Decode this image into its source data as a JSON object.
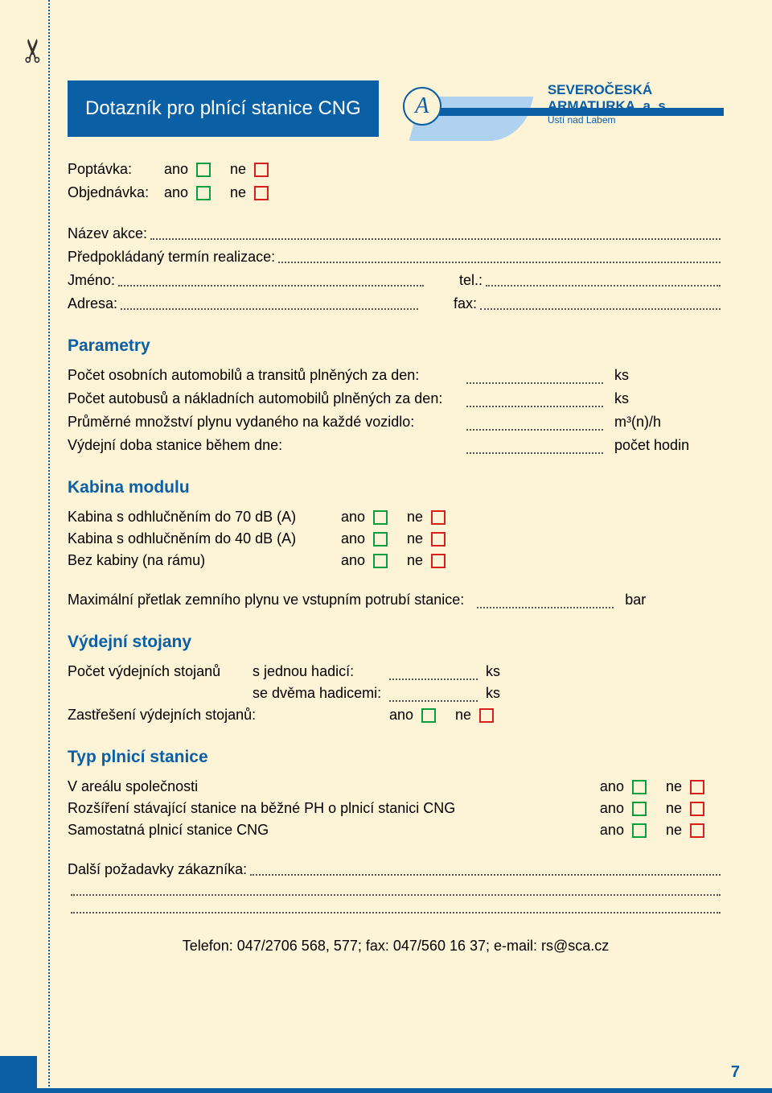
{
  "title": "Dotazník pro plnící stanice CNG",
  "company": {
    "name": "SEVEROČESKÁ ARMATURKA, a. s.",
    "city": "Ústí nad Labem",
    "logo_letter": "A"
  },
  "colors": {
    "brand": "#0a5fa5",
    "background": "#fdf3d6",
    "chk_yes": "#0b9e3f",
    "chk_no": "#d91e1e",
    "wave_light": "#aed2f0"
  },
  "labels": {
    "ano": "ano",
    "ne": "ne",
    "poptavka": "Poptávka:",
    "objednavka": "Objednávka:",
    "nazev_akce": "Název akce:",
    "termin": "Předpokládaný termín realizace:",
    "jmeno": "Jméno:",
    "adresa": "Adresa:",
    "tel": "tel.:",
    "fax": "fax:"
  },
  "parametry": {
    "heading": "Parametry",
    "rows": [
      {
        "label": "Počet osobních automobilů a transitů plněných za den:",
        "unit": "ks"
      },
      {
        "label": "Počet autobusů a nákladních automobilů plněných za den:",
        "unit": "ks"
      },
      {
        "label": "Průměrné množství plynu vydaného na každé vozidlo:",
        "unit": "m³(n)/h"
      },
      {
        "label": "Výdejní doba stanice během dne:",
        "unit": "počet hodin"
      }
    ]
  },
  "kabina": {
    "heading": "Kabina modulu",
    "rows": [
      "Kabina s odhlučněním do 70 dB (A)",
      "Kabina s odhlučněním do 40 dB (A)",
      "Bez kabiny (na rámu)"
    ],
    "max_pretlak": "Maximální přetlak zemního plynu ve vstupním potrubí stanice:",
    "max_unit": "bar"
  },
  "stojany": {
    "heading": "Výdejní stojany",
    "pocet": "Počet výdejních stojanů",
    "jedna": "s jednou hadicí:",
    "dve": "se dvěma hadicemi:",
    "zastreseni": "Zastřešení výdejních stojanů:",
    "unit": "ks"
  },
  "typ": {
    "heading": "Typ plnicí stanice",
    "rows": [
      "V areálu společnosti",
      "Rozšíření stávající stanice na běžné PH o plnicí stanici CNG",
      "Samostatná plnicí stanice CNG"
    ]
  },
  "dalsi": "Další požadavky zákazníka:",
  "footer": "Telefon: 047/2706 568, 577; fax: 047/560 16 37; e-mail: rs@sca.cz",
  "page_number": "7"
}
